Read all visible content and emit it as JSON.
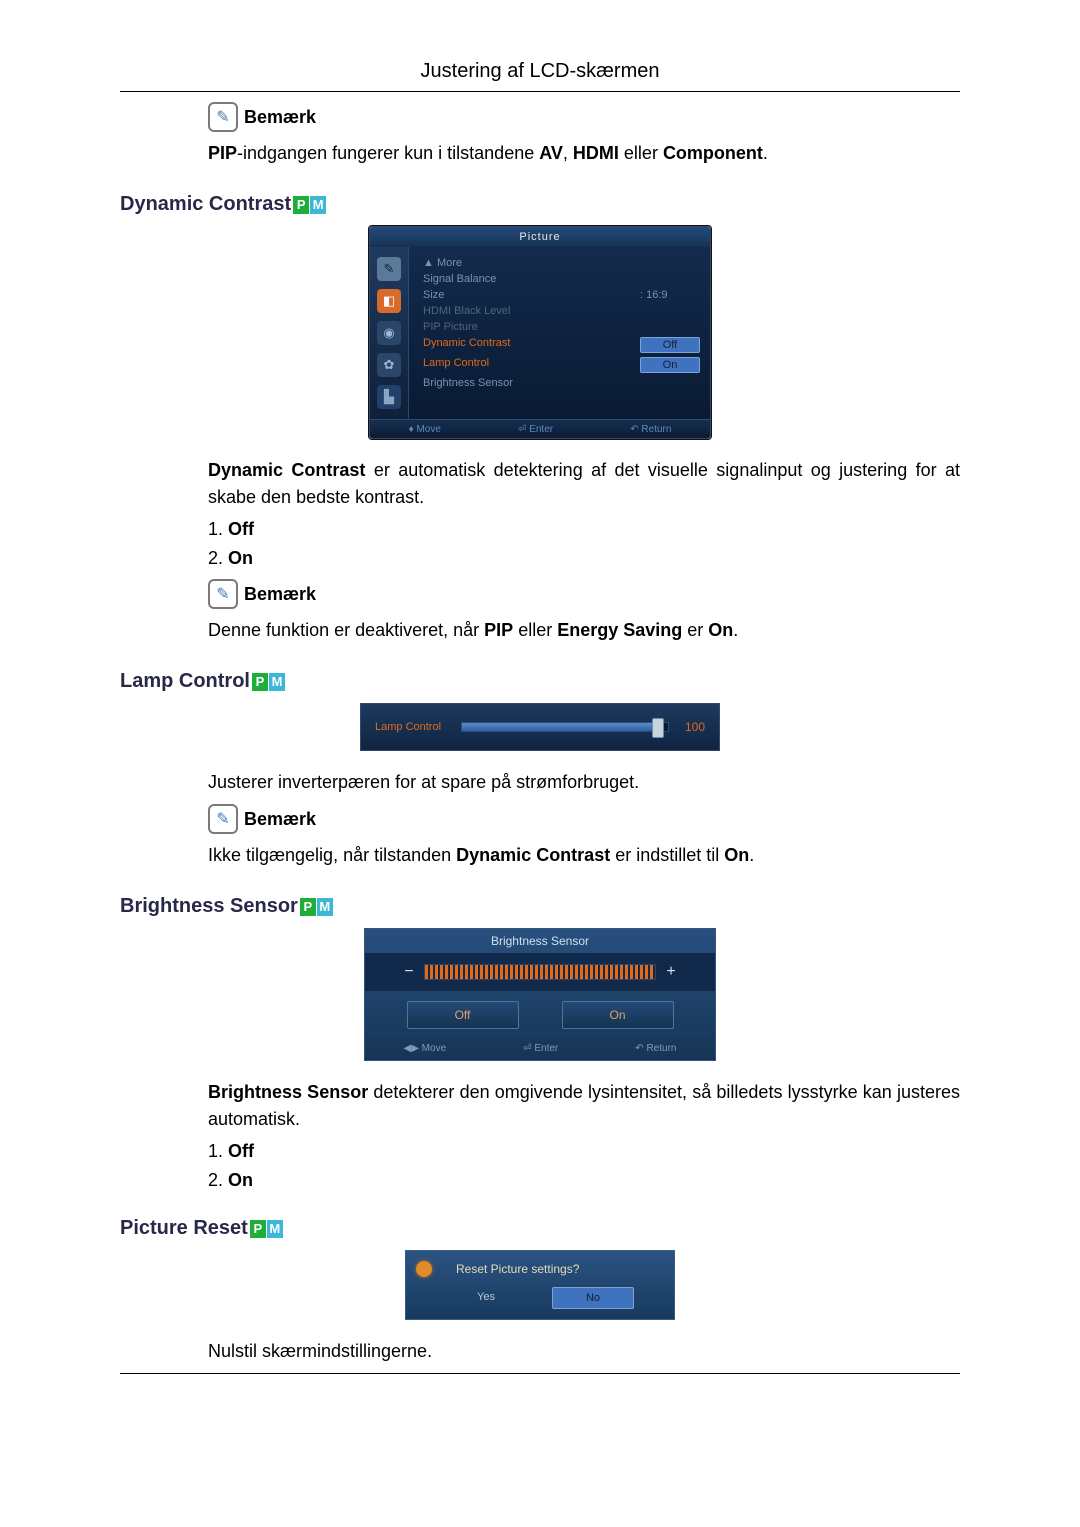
{
  "header": {
    "title": "Justering af LCD-skærmen"
  },
  "note_label": "Bemærk",
  "note1_text": "PIP-indgangen fungerer kun i tilstandene AV, HDMI eller Component.",
  "note1_bold": {
    "a": "PIP",
    "b": "AV",
    "c": "HDMI",
    "d": "Component"
  },
  "pm": {
    "p": "P",
    "m": "M"
  },
  "dynamic": {
    "title": "Dynamic Contrast",
    "osd": {
      "bar_title": "Picture",
      "rows": {
        "more": "▲ More",
        "signal_balance": "Signal Balance",
        "size": "Size",
        "size_val": ":   16:9",
        "hdmi": "HDMI Black Level",
        "pip": "PIP Picture",
        "dyn": "Dynamic Contrast",
        "dyn_val": "Off",
        "lamp": "Lamp Control",
        "lamp_val": "On",
        "bsense": "Brightness Sensor"
      },
      "icons": {
        "i1_bg": "#5b7a99",
        "i1_t": "✎",
        "i2_bg": "#d86a2a",
        "i2_t": "◧",
        "i3_bg": "#2a4668",
        "i3_t": "◉",
        "i4_bg": "#2a4668",
        "i4_t": "✿",
        "i5_bg": "#22406a",
        "i5_t": "▙"
      },
      "foot": {
        "move": "♦ Move",
        "enter": "⏎ Enter",
        "ret": "↶ Return"
      }
    },
    "desc_a": "Dynamic Contrast",
    "desc_b": " er automatisk detektering af det visuelle signalinput og justering for at skabe den bedste kontrast.",
    "opts": {
      "off": "Off",
      "on": "On"
    },
    "note2_a": "Denne funktion er deaktiveret, når ",
    "note2_pip": "PIP",
    "note2_b": " eller ",
    "note2_es": "Energy Saving",
    "note2_c": " er ",
    "note2_on": "On",
    "note2_d": "."
  },
  "lamp": {
    "title": "Lamp Control",
    "slider": {
      "label": "Lamp Control",
      "value": "100",
      "fill_pct": 96
    },
    "desc": "Justerer inverterpæren for at spare på strømforbruget.",
    "note_a": "Ikke tilgængelig, når tilstanden ",
    "note_dc": "Dynamic Contrast",
    "note_b": " er indstillet til ",
    "note_on": "On",
    "note_c": "."
  },
  "bsense": {
    "title": "Brightness Sensor",
    "panel": {
      "title": "Brightness Sensor",
      "minus": "−",
      "plus": "+",
      "off": "Off",
      "on": "On",
      "foot": {
        "move": "◀▶ Move",
        "enter": "⏎ Enter",
        "ret": "↶ Return"
      }
    },
    "desc_a": "Brightness Sensor",
    "desc_b": " detekterer den omgivende lysintensitet, så billedets lysstyrke kan justeres automatisk.",
    "opts": {
      "off": "Off",
      "on": "On"
    }
  },
  "reset": {
    "title": "Picture Reset",
    "dialog": {
      "q": "Reset Picture settings?",
      "yes": "Yes",
      "no": "No"
    },
    "desc": "Nulstil skærmindstillingerne."
  }
}
